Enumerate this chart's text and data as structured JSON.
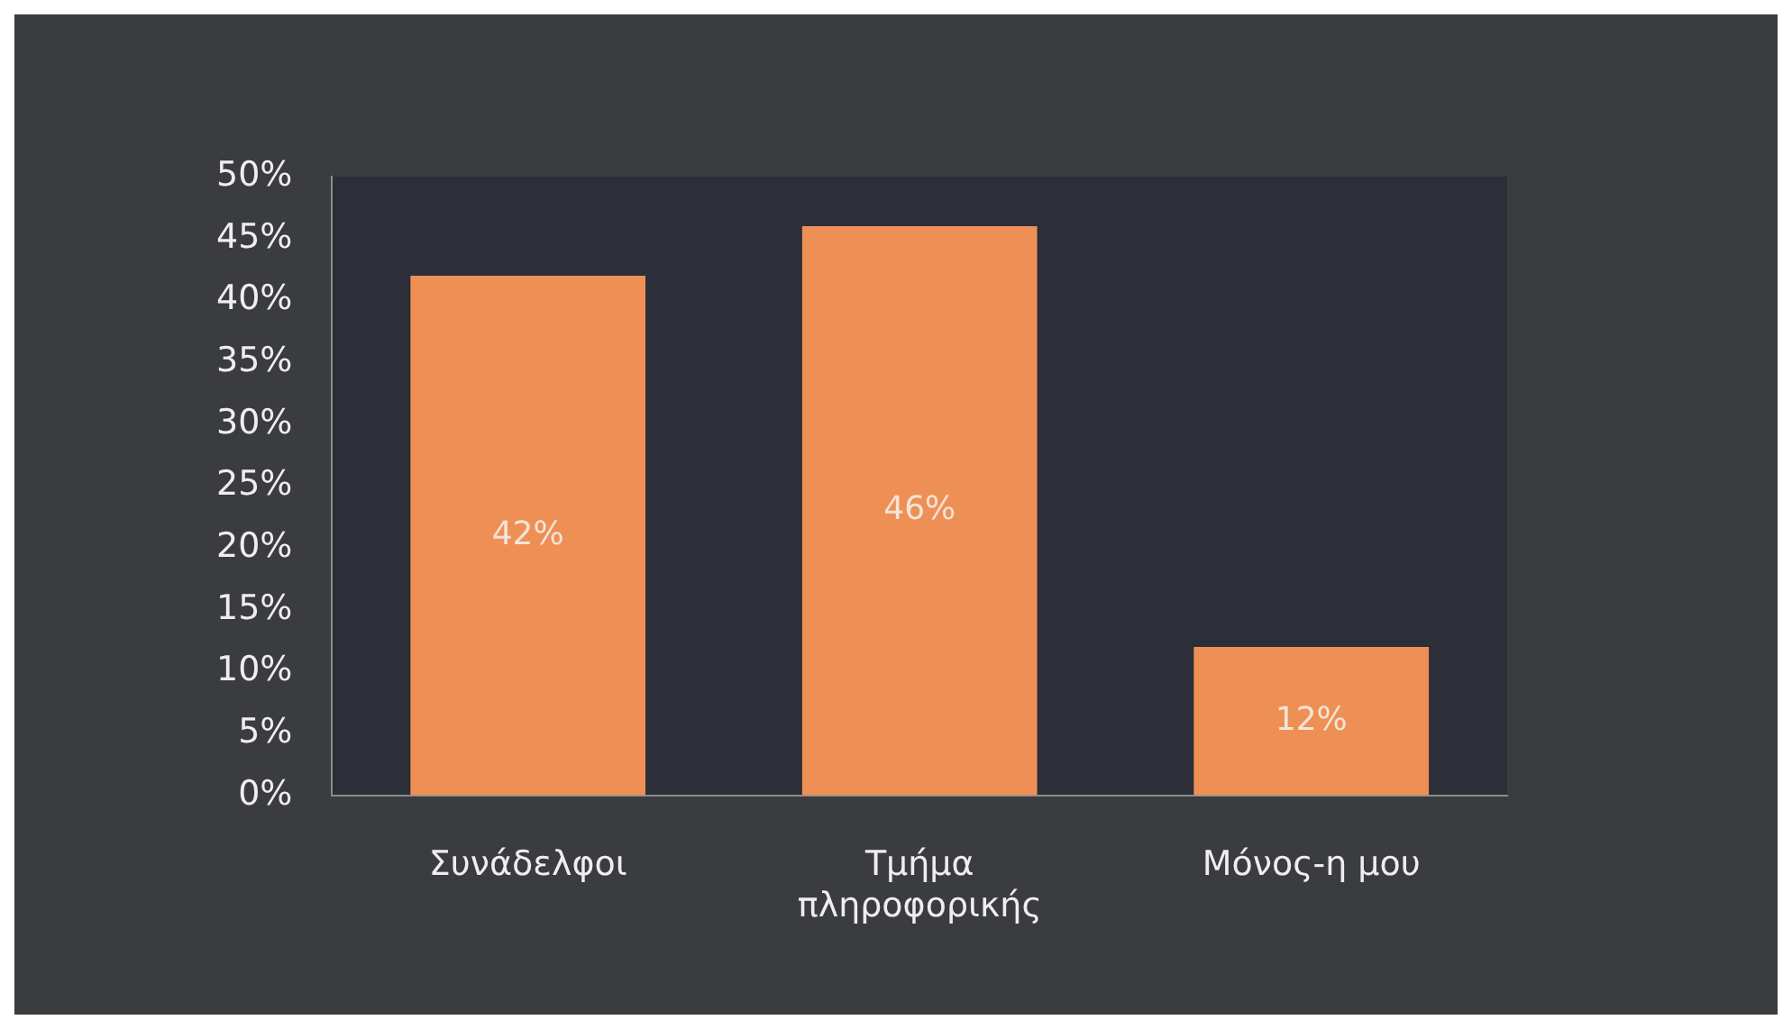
{
  "chart_data": {
    "type": "bar",
    "categories": [
      "Συνάδελφοι",
      "Τμήμα πληροφορικής",
      "Μόνος-η μου"
    ],
    "values": [
      42,
      46,
      12
    ],
    "color": "#ee9055",
    "value_labels": [
      "42%",
      "46%",
      "12%"
    ],
    "ylim": [
      0,
      50
    ],
    "yticks": [
      {
        "value": 0,
        "label": "0%"
      },
      {
        "value": 5,
        "label": "5%"
      },
      {
        "value": 10,
        "label": "10%"
      },
      {
        "value": 15,
        "label": "15%"
      },
      {
        "value": 20,
        "label": "20%"
      },
      {
        "value": 25,
        "label": "25%"
      },
      {
        "value": 30,
        "label": "30%"
      },
      {
        "value": 35,
        "label": "35%"
      },
      {
        "value": 40,
        "label": "40%"
      },
      {
        "value": 45,
        "label": "45%"
      },
      {
        "value": 50,
        "label": "50%"
      }
    ],
    "grid": false,
    "legend": false
  }
}
